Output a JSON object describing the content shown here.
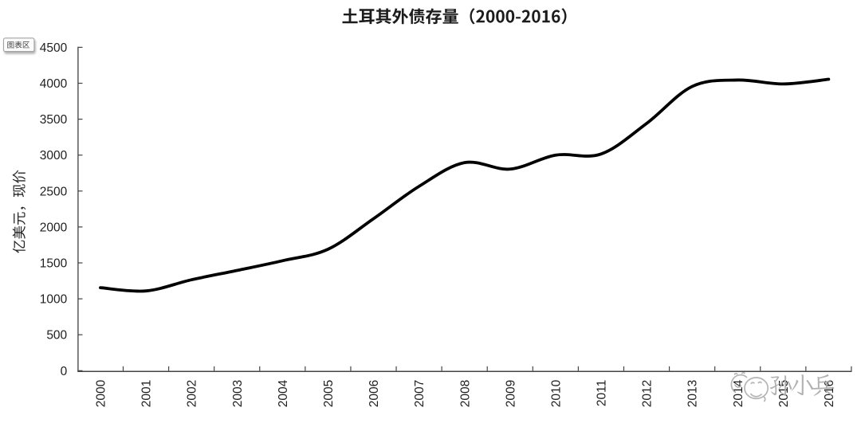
{
  "page": {
    "background": "#ffffff"
  },
  "chart_data": {
    "type": "line",
    "title": "土耳其外债存量（2000-2016）",
    "ylabel": "亿美元，现价",
    "xlabel": "",
    "categories": [
      "2000",
      "2001",
      "2002",
      "2003",
      "2004",
      "2005",
      "2006",
      "2007",
      "2008",
      "2009",
      "2010",
      "2011",
      "2012",
      "2013",
      "2014",
      "2015",
      "2016"
    ],
    "series": [
      {
        "name": "土耳其外债存量",
        "values": [
          1155,
          1110,
          1265,
          1395,
          1530,
          1690,
          2115,
          2565,
          2895,
          2805,
          3000,
          3015,
          3440,
          3955,
          4045,
          3990,
          4055
        ]
      }
    ],
    "yticks": [
      0,
      500,
      1000,
      1500,
      2000,
      2500,
      3000,
      3500,
      4000,
      4500
    ],
    "ylim": [
      0,
      4500
    ],
    "grid": "off",
    "legend": "none",
    "line_smooth": true,
    "line_color": "#000000",
    "axis_color": "#454545",
    "tick_label_color": "#1f1f1f",
    "title_color": "#1c1c1c"
  },
  "overlays": {
    "chart_area_tooltip": {
      "label": "图表区"
    },
    "watermark": {
      "text": "孙小兵",
      "icon": "doodle-chat-faces-icon",
      "color": "#b5b5b5"
    }
  }
}
